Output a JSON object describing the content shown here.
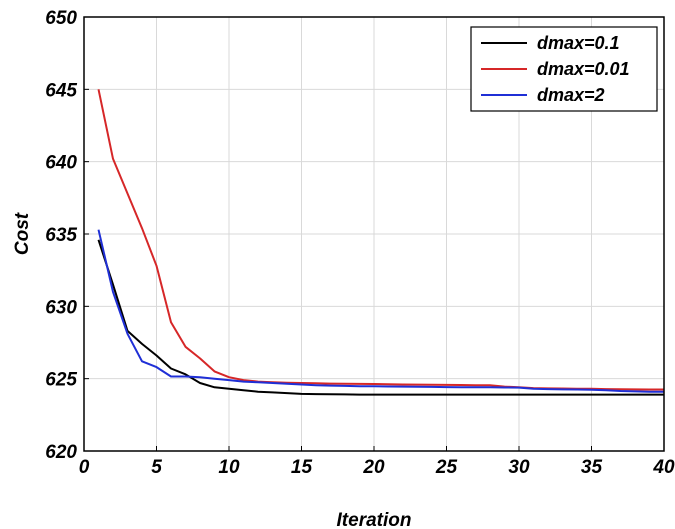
{
  "chart_data": {
    "type": "line",
    "xlabel": "Iteration",
    "ylabel": "Cost",
    "xlim": [
      0,
      40
    ],
    "ylim": [
      620,
      650
    ],
    "xticks": [
      0,
      5,
      10,
      15,
      20,
      25,
      30,
      35,
      40
    ],
    "yticks": [
      620,
      625,
      630,
      635,
      640,
      645,
      650
    ],
    "grid": true,
    "legend_position": "top-right",
    "series": [
      {
        "name": "dmax=0.1",
        "color": "#000000",
        "x": [
          1,
          2,
          3,
          4,
          5,
          6,
          7,
          8,
          9,
          10,
          11,
          12,
          13,
          14,
          15,
          16,
          17,
          18,
          19,
          20,
          21,
          22,
          23,
          24,
          25,
          26,
          27,
          28,
          29,
          30,
          31,
          32,
          33,
          34,
          35,
          36,
          37,
          38,
          39,
          40
        ],
        "y": [
          634.6,
          631.5,
          628.3,
          627.4,
          626.6,
          625.7,
          625.3,
          624.7,
          624.4,
          624.3,
          624.2,
          624.1,
          624.05,
          624.0,
          623.95,
          623.93,
          623.92,
          623.91,
          623.9,
          623.9,
          623.9,
          623.9,
          623.9,
          623.9,
          623.9,
          623.9,
          623.9,
          623.9,
          623.9,
          623.9,
          623.9,
          623.9,
          623.9,
          623.9,
          623.9,
          623.9,
          623.9,
          623.9,
          623.9,
          623.9
        ]
      },
      {
        "name": "dmax=0.01",
        "color": "#d62728",
        "x": [
          1,
          2,
          3,
          4,
          5,
          6,
          7,
          8,
          9,
          10,
          11,
          12,
          13,
          14,
          15,
          16,
          17,
          18,
          19,
          20,
          21,
          22,
          23,
          24,
          25,
          26,
          27,
          28,
          29,
          30,
          31,
          32,
          33,
          34,
          35,
          36,
          37,
          38,
          39,
          40
        ],
        "y": [
          645.0,
          640.2,
          637.8,
          635.4,
          632.8,
          628.9,
          627.2,
          626.4,
          625.5,
          625.1,
          624.9,
          624.8,
          624.75,
          624.72,
          624.7,
          624.68,
          624.66,
          624.65,
          624.64,
          624.63,
          624.62,
          624.6,
          624.59,
          624.58,
          624.57,
          624.56,
          624.55,
          624.55,
          624.45,
          624.4,
          624.35,
          624.33,
          624.32,
          624.3,
          624.3,
          624.28,
          624.27,
          624.26,
          624.25,
          624.25
        ]
      },
      {
        "name": "dmax=2",
        "color": "#1f2fd6",
        "x": [
          1,
          2,
          3,
          4,
          5,
          6,
          7,
          8,
          9,
          10,
          11,
          12,
          13,
          14,
          15,
          16,
          17,
          18,
          19,
          20,
          21,
          22,
          23,
          24,
          25,
          26,
          27,
          28,
          29,
          30,
          31,
          32,
          33,
          34,
          35,
          36,
          37,
          38,
          39,
          40
        ],
        "y": [
          635.3,
          631.0,
          628.1,
          626.2,
          625.8,
          625.15,
          625.15,
          625.1,
          625.0,
          624.9,
          624.8,
          624.75,
          624.7,
          624.65,
          624.6,
          624.55,
          624.52,
          624.5,
          624.48,
          624.47,
          624.46,
          624.45,
          624.44,
          624.43,
          624.42,
          624.41,
          624.4,
          624.4,
          624.39,
          624.38,
          624.3,
          624.28,
          624.26,
          624.25,
          624.24,
          624.2,
          624.15,
          624.12,
          624.1,
          624.1
        ]
      }
    ]
  }
}
